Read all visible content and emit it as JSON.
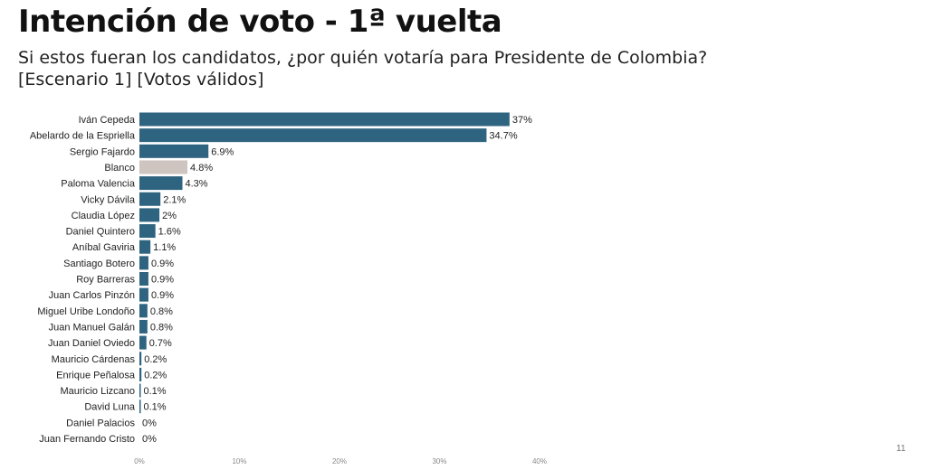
{
  "header": {
    "title": "Intención de voto - 1ª vuelta",
    "subtitle_line1": "Si estos fueran los candidatos, ¿por quién votaría para Presidente de Colombia?",
    "subtitle_line2": "[Escenario 1] [Votos válidos]"
  },
  "page_number": "11",
  "colors": {
    "bar": "#2f6480",
    "blank_bar": "#cfc5c0"
  },
  "chart_data": {
    "type": "bar",
    "orientation": "horizontal",
    "title": "Intención de voto - 1ª vuelta",
    "xlabel": "",
    "ylabel": "",
    "xlim": [
      0,
      40
    ],
    "xticks": [
      0,
      10,
      20,
      30,
      40
    ],
    "xtick_labels": [
      "0%",
      "10%",
      "20%",
      "30%",
      "40%"
    ],
    "categories": [
      "Iván Cepeda",
      "Abelardo de la Espriella",
      "Sergio Fajardo",
      "Blanco",
      "Paloma Valencia",
      "Vicky Dávila",
      "Claudia López",
      "Daniel Quintero",
      "Aníbal Gaviria",
      "Santiago Botero",
      "Roy Barreras",
      "Juan Carlos Pinzón",
      "Miguel Uribe Londoño",
      "Juan Manuel Galán",
      "Juan Daniel Oviedo",
      "Mauricio Cárdenas",
      "Enrique Peñalosa",
      "Mauricio Lizcano",
      "David Luna",
      "Daniel Palacios",
      "Juan Fernando Cristo"
    ],
    "values": [
      37,
      34.7,
      6.9,
      4.8,
      4.3,
      2.1,
      2,
      1.6,
      1.1,
      0.9,
      0.9,
      0.9,
      0.8,
      0.8,
      0.7,
      0.2,
      0.2,
      0.1,
      0.1,
      0,
      0
    ],
    "value_labels": [
      "37%",
      "34.7%",
      "6.9%",
      "4.8%",
      "4.3%",
      "2.1%",
      "2%",
      "1.6%",
      "1.1%",
      "0.9%",
      "0.9%",
      "0.9%",
      "0.8%",
      "0.8%",
      "0.7%",
      "0.2%",
      "0.2%",
      "0.1%",
      "0.1%",
      "0%",
      "0%"
    ],
    "highlight_category": "Blanco"
  }
}
